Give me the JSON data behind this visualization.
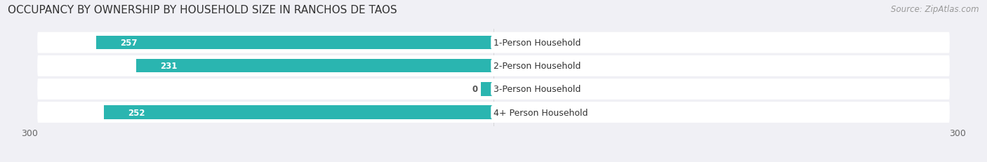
{
  "title": "OCCUPANCY BY OWNERSHIP BY HOUSEHOLD SIZE IN RANCHOS DE TAOS",
  "source": "Source: ZipAtlas.com",
  "categories": [
    "1-Person Household",
    "2-Person Household",
    "3-Person Household",
    "4+ Person Household"
  ],
  "owner_values": [
    257,
    231,
    0,
    252
  ],
  "renter_values": [
    0,
    0,
    0,
    0
  ],
  "owner_color": "#2ab5b0",
  "renter_color": "#f4a0b0",
  "bg_color": "#f0f0f5",
  "row_bg_color": "#e8e8ee",
  "xlim_left": -300,
  "xlim_right": 300,
  "title_fontsize": 11,
  "source_fontsize": 8.5,
  "bar_height": 0.58,
  "category_fontsize": 9,
  "value_fontsize": 8.5,
  "renter_bar_width": 35,
  "min_owner_bar": 8
}
